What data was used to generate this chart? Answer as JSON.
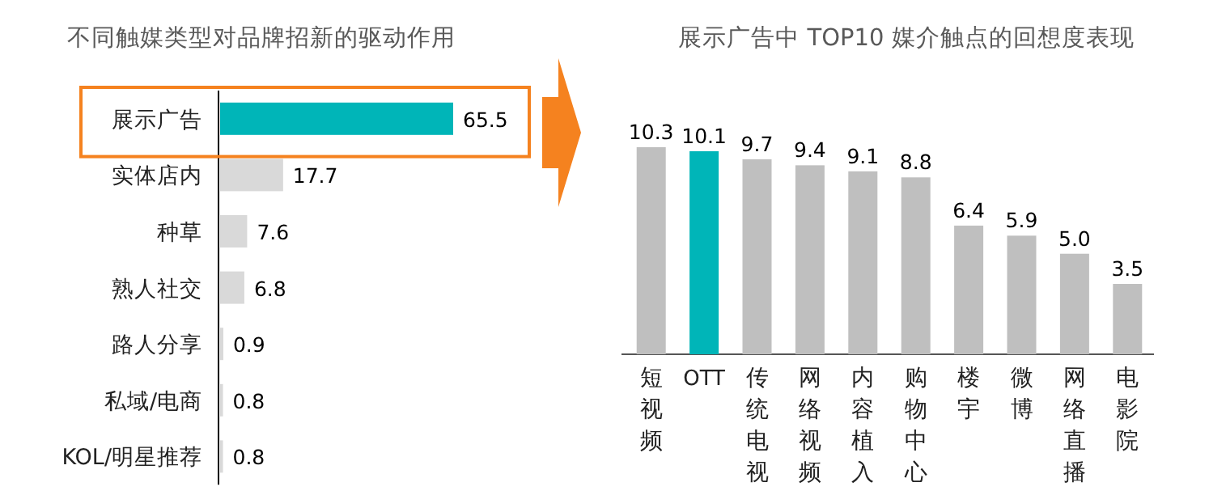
{
  "chart_data": [
    {
      "type": "bar",
      "orientation": "horizontal",
      "title": "不同触媒类型对品牌招新的驱动作用",
      "categories": [
        "展示广告",
        "实体店内",
        "种草",
        "熟人社交",
        "路人分享",
        "私域/电商",
        "KOL/明星推荐"
      ],
      "values": [
        65.5,
        17.7,
        7.6,
        6.8,
        0.9,
        0.8,
        0.8
      ],
      "colors": [
        "#00b5b8",
        "#d9d9d9",
        "#d9d9d9",
        "#d9d9d9",
        "#d9d9d9",
        "#d9d9d9",
        "#d9d9d9"
      ],
      "data_labels": true
    },
    {
      "type": "bar",
      "title": "展示广告中 TOP10 媒介触点的回想度表现",
      "categories": [
        "短视频",
        "OTT",
        "传统电视",
        "网络视频",
        "内容植入",
        "购物中心",
        "楼宇",
        "微博",
        "网络直播",
        "电影院"
      ],
      "values": [
        10.3,
        10.1,
        9.7,
        9.4,
        9.1,
        8.8,
        6.4,
        5.9,
        5.0,
        3.5
      ],
      "colors": [
        "#bfbfbf",
        "#00b5b8",
        "#bfbfbf",
        "#bfbfbf",
        "#bfbfbf",
        "#bfbfbf",
        "#bfbfbf",
        "#bfbfbf",
        "#bfbfbf",
        "#bfbfbf"
      ],
      "value_labels": [
        "10.3",
        "10.1",
        "9.7",
        "9.4",
        "9.1",
        "8.8",
        "6.4",
        "5.9",
        "5.0",
        "3.5"
      ]
    }
  ]
}
